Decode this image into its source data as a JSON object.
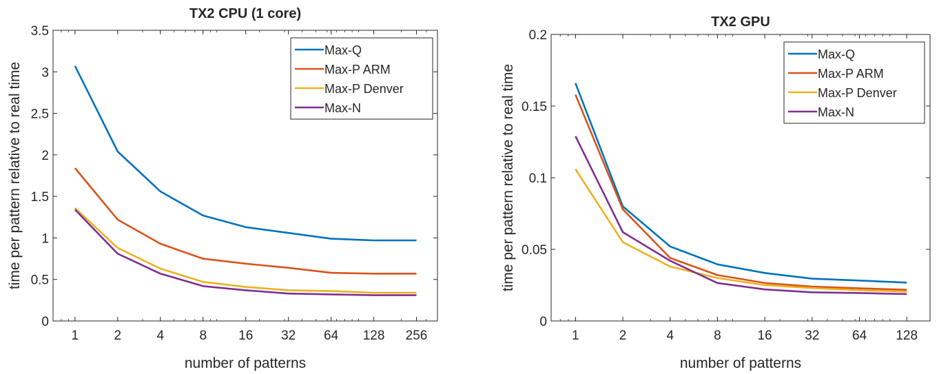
{
  "chart_data": [
    {
      "type": "line",
      "title": "TX2 CPU (1 core)",
      "xlabel": "number of patterns",
      "ylabel": "time per pattern relative to real time",
      "x": [
        1,
        2,
        4,
        8,
        16,
        32,
        64,
        128,
        256
      ],
      "x_scale": "log2",
      "xlim": [
        0.7,
        360
      ],
      "ylim": [
        0,
        3.5
      ],
      "x_ticks": [
        "1",
        "2",
        "4",
        "8",
        "16",
        "32",
        "64",
        "128",
        "256"
      ],
      "y_ticks": [
        "0",
        "0.5",
        "1",
        "1.5",
        "2",
        "2.5",
        "3",
        "3.5"
      ],
      "grid": false,
      "legend_position": "top-right",
      "series": [
        {
          "name": "Max-Q",
          "color": "#0072BD",
          "values": [
            3.07,
            2.04,
            1.56,
            1.27,
            1.13,
            1.06,
            0.99,
            0.97,
            0.97
          ]
        },
        {
          "name": "Max-P ARM",
          "color": "#D95319",
          "values": [
            1.84,
            1.22,
            0.93,
            0.75,
            0.69,
            0.64,
            0.58,
            0.57,
            0.57
          ]
        },
        {
          "name": "Max-P Denver",
          "color": "#EDB120",
          "values": [
            1.36,
            0.88,
            0.63,
            0.47,
            0.41,
            0.37,
            0.36,
            0.34,
            0.34
          ]
        },
        {
          "name": "Max-N",
          "color": "#7E2F8E",
          "values": [
            1.34,
            0.81,
            0.57,
            0.42,
            0.37,
            0.33,
            0.32,
            0.31,
            0.31
          ]
        }
      ]
    },
    {
      "type": "line",
      "title": "TX2 GPU",
      "xlabel": "number of patterns",
      "ylabel": "time per pattern relative to real time",
      "x": [
        1,
        2,
        4,
        8,
        16,
        32,
        64,
        128
      ],
      "x_scale": "log2",
      "xlim": [
        0.7,
        180
      ],
      "ylim": [
        0,
        0.2
      ],
      "x_ticks": [
        "1",
        "2",
        "4",
        "8",
        "16",
        "32",
        "64",
        "128"
      ],
      "y_ticks": [
        "0",
        "0.05",
        "0.1",
        "0.15",
        "0.2"
      ],
      "grid": false,
      "legend_position": "top-right",
      "series": [
        {
          "name": "Max-Q",
          "color": "#0072BD",
          "values": [
            0.166,
            0.08,
            0.052,
            0.0395,
            0.0335,
            0.0295,
            0.0282,
            0.0268
          ]
        },
        {
          "name": "Max-P ARM",
          "color": "#D95319",
          "values": [
            0.158,
            0.078,
            0.044,
            0.032,
            0.0265,
            0.024,
            0.0228,
            0.0218
          ]
        },
        {
          "name": "Max-P Denver",
          "color": "#EDB120",
          "values": [
            0.106,
            0.055,
            0.038,
            0.03,
            0.025,
            0.023,
            0.0215,
            0.0205
          ]
        },
        {
          "name": "Max-N",
          "color": "#7E2F8E",
          "values": [
            0.129,
            0.062,
            0.042,
            0.0265,
            0.022,
            0.02,
            0.0195,
            0.0188
          ]
        }
      ]
    }
  ]
}
